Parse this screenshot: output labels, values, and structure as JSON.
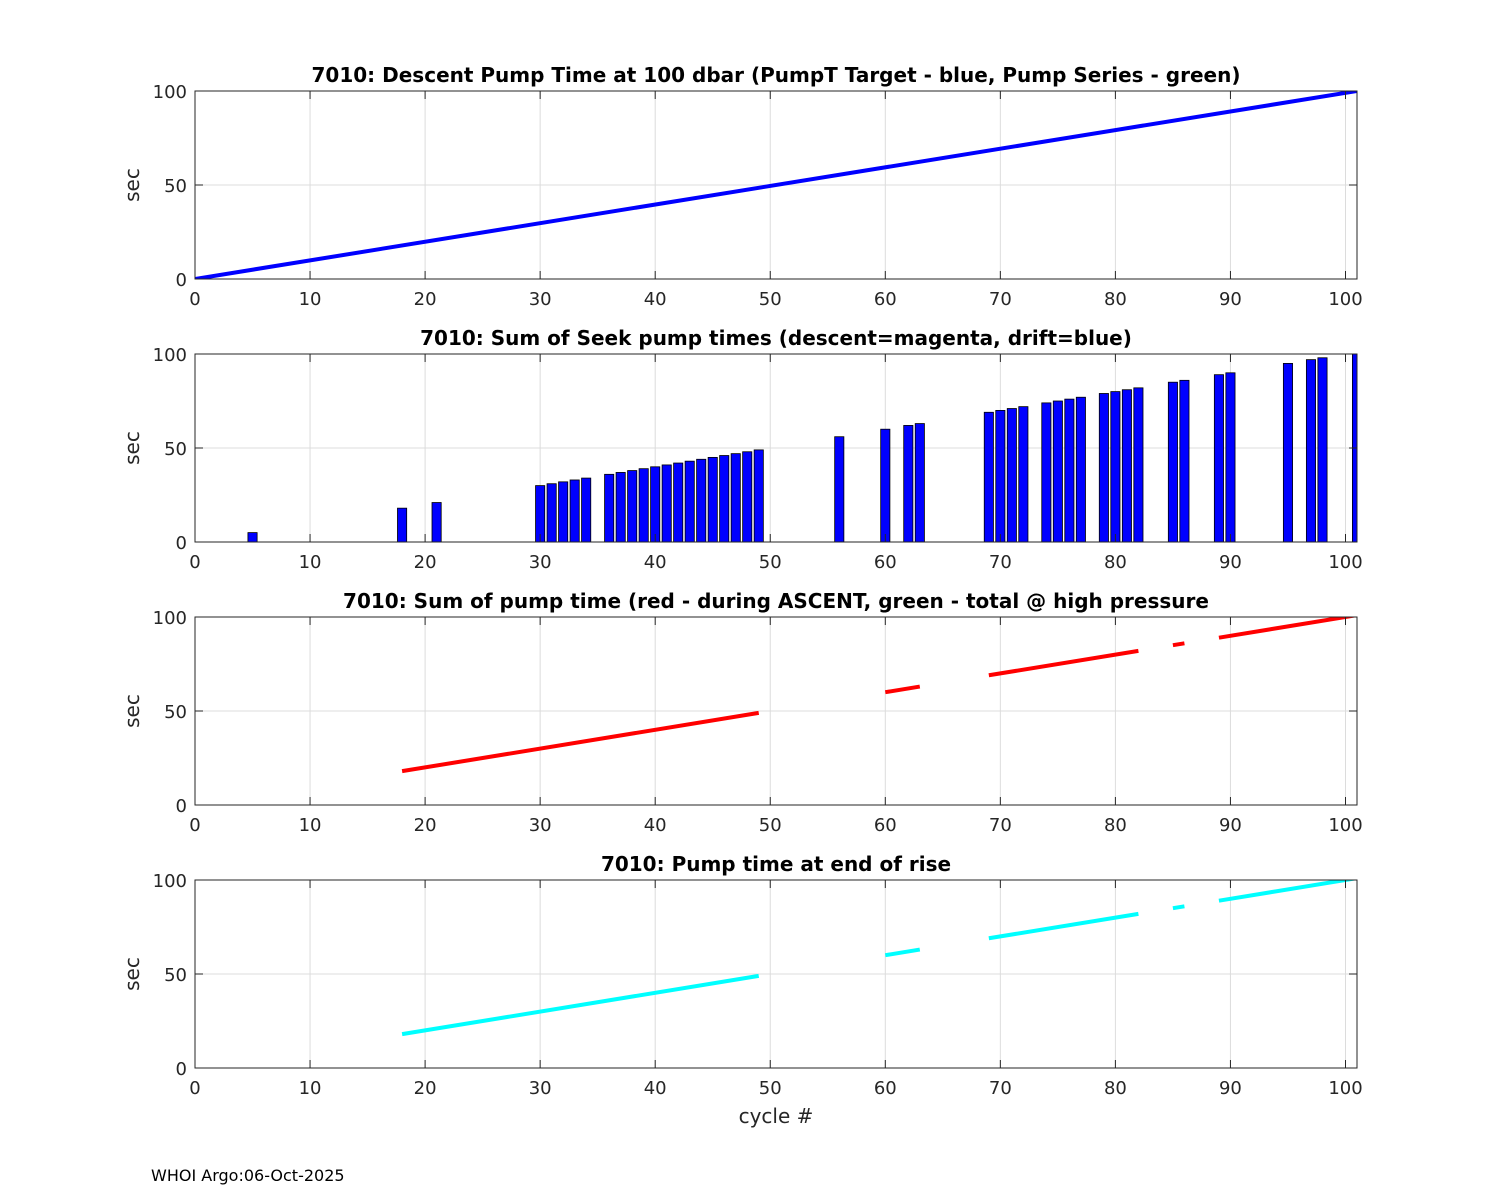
{
  "footer": "WHOI Argo:06-Oct-2025",
  "colors": {
    "blue": "#0000ff",
    "red": "#ff0000",
    "cyan": "#00ffff",
    "grid": "#dcdcdc",
    "axis": "#262626"
  },
  "chart_data": [
    {
      "id": "descent-pump-time",
      "type": "line",
      "title": "7010: Descent Pump Time at 100 dbar (PumpT Target - blue, Pump Series - green)",
      "xlabel": "",
      "ylabel": "sec",
      "xlim": [
        0,
        101
      ],
      "ylim": [
        0,
        100
      ],
      "xticks": [
        0,
        10,
        20,
        30,
        40,
        50,
        60,
        70,
        80,
        90,
        100
      ],
      "yticks": [
        0,
        50,
        100
      ],
      "grid": true,
      "series": [
        {
          "name": "PumpT Target",
          "color": "#0000ff",
          "segments": [
            [
              [
                0,
                0
              ],
              [
                101,
                100
              ]
            ]
          ]
        }
      ]
    },
    {
      "id": "seek-pump-times",
      "type": "bar",
      "title": "7010: Sum of Seek pump times (descent=magenta, drift=blue)",
      "xlabel": "",
      "ylabel": "sec",
      "xlim": [
        0,
        101
      ],
      "ylim": [
        0,
        100
      ],
      "xticks": [
        0,
        10,
        20,
        30,
        40,
        50,
        60,
        70,
        80,
        90,
        100
      ],
      "yticks": [
        0,
        50,
        100
      ],
      "grid": true,
      "bar_width": 0.8,
      "bar_color": "#0000ff",
      "bars": [
        {
          "x": 5,
          "y": 5
        },
        {
          "x": 18,
          "y": 18
        },
        {
          "x": 21,
          "y": 21
        },
        {
          "x": 30,
          "y": 30
        },
        {
          "x": 31,
          "y": 31
        },
        {
          "x": 32,
          "y": 32
        },
        {
          "x": 33,
          "y": 33
        },
        {
          "x": 34,
          "y": 34
        },
        {
          "x": 36,
          "y": 36
        },
        {
          "x": 37,
          "y": 37
        },
        {
          "x": 38,
          "y": 38
        },
        {
          "x": 39,
          "y": 39
        },
        {
          "x": 40,
          "y": 40
        },
        {
          "x": 41,
          "y": 41
        },
        {
          "x": 42,
          "y": 42
        },
        {
          "x": 43,
          "y": 43
        },
        {
          "x": 44,
          "y": 44
        },
        {
          "x": 45,
          "y": 45
        },
        {
          "x": 46,
          "y": 46
        },
        {
          "x": 47,
          "y": 47
        },
        {
          "x": 48,
          "y": 48
        },
        {
          "x": 49,
          "y": 49
        },
        {
          "x": 56,
          "y": 56
        },
        {
          "x": 60,
          "y": 60
        },
        {
          "x": 62,
          "y": 62
        },
        {
          "x": 63,
          "y": 63
        },
        {
          "x": 69,
          "y": 69
        },
        {
          "x": 70,
          "y": 70
        },
        {
          "x": 71,
          "y": 71
        },
        {
          "x": 72,
          "y": 72
        },
        {
          "x": 74,
          "y": 74
        },
        {
          "x": 75,
          "y": 75
        },
        {
          "x": 76,
          "y": 76
        },
        {
          "x": 77,
          "y": 77
        },
        {
          "x": 79,
          "y": 79
        },
        {
          "x": 80,
          "y": 80
        },
        {
          "x": 81,
          "y": 81
        },
        {
          "x": 82,
          "y": 82
        },
        {
          "x": 85,
          "y": 85
        },
        {
          "x": 86,
          "y": 86
        },
        {
          "x": 89,
          "y": 89
        },
        {
          "x": 90,
          "y": 90
        },
        {
          "x": 95,
          "y": 95
        },
        {
          "x": 97,
          "y": 97
        },
        {
          "x": 98,
          "y": 98
        },
        {
          "x": 101,
          "y": 101
        }
      ]
    },
    {
      "id": "ascent-pump-time",
      "type": "line",
      "title": "7010: Sum of pump time (red - during ASCENT, green - total @ high pressure",
      "xlabel": "",
      "ylabel": "sec",
      "xlim": [
        0,
        101
      ],
      "ylim": [
        0,
        100
      ],
      "xticks": [
        0,
        10,
        20,
        30,
        40,
        50,
        60,
        70,
        80,
        90,
        100
      ],
      "yticks": [
        0,
        50,
        100
      ],
      "grid": true,
      "series": [
        {
          "name": "during ASCENT",
          "color": "#ff0000",
          "segments": [
            [
              [
                18,
                18
              ],
              [
                49,
                49
              ]
            ],
            [
              [
                60,
                60
              ],
              [
                63,
                63
              ]
            ],
            [
              [
                69,
                69
              ],
              [
                82,
                82
              ]
            ],
            [
              [
                85,
                85
              ],
              [
                86,
                86
              ]
            ],
            [
              [
                89,
                89
              ],
              [
                101,
                101
              ]
            ]
          ]
        }
      ]
    },
    {
      "id": "end-of-rise-pump-time",
      "type": "line",
      "title": "7010: Pump time at end of rise",
      "xlabel": "cycle #",
      "ylabel": "sec",
      "xlim": [
        0,
        101
      ],
      "ylim": [
        0,
        100
      ],
      "xticks": [
        0,
        10,
        20,
        30,
        40,
        50,
        60,
        70,
        80,
        90,
        100
      ],
      "yticks": [
        0,
        50,
        100
      ],
      "grid": true,
      "series": [
        {
          "name": "end of rise",
          "color": "#00ffff",
          "segments": [
            [
              [
                18,
                18
              ],
              [
                49,
                49
              ]
            ],
            [
              [
                60,
                60
              ],
              [
                63,
                63
              ]
            ],
            [
              [
                69,
                69
              ],
              [
                82,
                82
              ]
            ],
            [
              [
                85,
                85
              ],
              [
                86,
                86
              ]
            ],
            [
              [
                89,
                89
              ],
              [
                101,
                101
              ]
            ]
          ]
        }
      ]
    }
  ]
}
